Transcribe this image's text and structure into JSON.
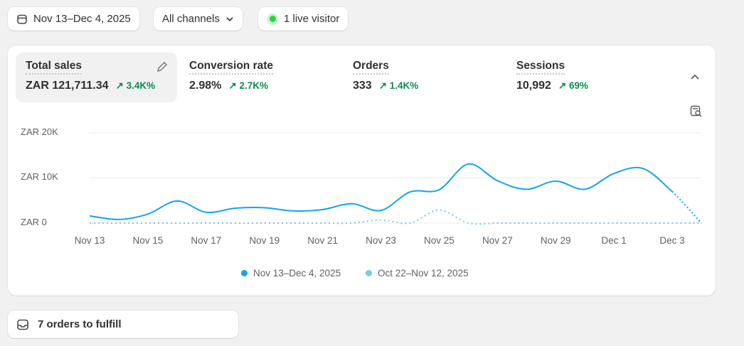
{
  "toolbar": {
    "date_range": "Nov 13–Dec 4, 2025",
    "channels": "All channels",
    "live": "1 live visitor"
  },
  "metrics": [
    {
      "label": "Total sales",
      "value": "ZAR 121,711.34",
      "delta": "3.4K%"
    },
    {
      "label": "Conversion rate",
      "value": "2.98%",
      "delta": "2.7K%"
    },
    {
      "label": "Orders",
      "value": "333",
      "delta": "1.4K%"
    },
    {
      "label": "Sessions",
      "value": "10,992",
      "delta": "69%"
    }
  ],
  "chart_data": {
    "type": "line",
    "ylim": [
      0,
      20000
    ],
    "yticks": [
      "ZAR 0",
      "ZAR 10K",
      "ZAR 20K"
    ],
    "xticks": [
      "Nov 13",
      "Nov 15",
      "Nov 17",
      "Nov 19",
      "Nov 21",
      "Nov 23",
      "Nov 25",
      "Nov 27",
      "Nov 29",
      "Dec 1",
      "Dec 3"
    ],
    "series": [
      {
        "name": "Nov 13–Dec 4, 2025",
        "color": "#13a4ec",
        "values": [
          1600,
          800,
          2000,
          4900,
          2400,
          3300,
          3400,
          2700,
          3000,
          4300,
          2800,
          6900,
          7400,
          13100,
          9400,
          7500,
          9300,
          7500,
          11000,
          12100,
          7000,
          0
        ]
      },
      {
        "name": "Oct 22–Nov 12, 2025",
        "color": "#7cc8eb",
        "values": [
          0,
          0,
          0,
          0,
          0,
          0,
          0,
          0,
          0,
          0,
          700,
          0,
          2900,
          0,
          0,
          0,
          0,
          0,
          0,
          0,
          0,
          0
        ]
      }
    ]
  },
  "fulfill": {
    "label": "7 orders to fulfill"
  }
}
